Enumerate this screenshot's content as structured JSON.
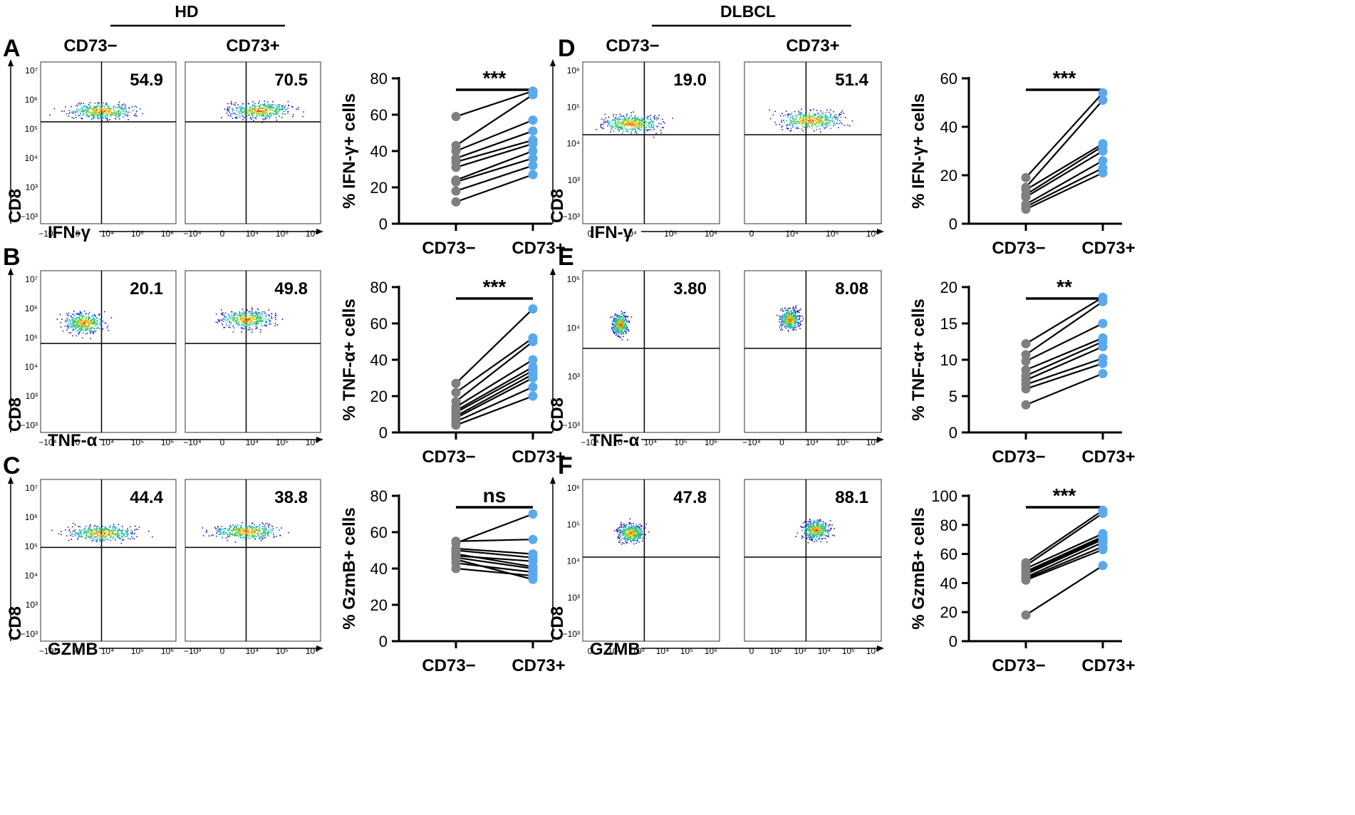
{
  "figure": {
    "groups": [
      {
        "label": "HD",
        "columns": [
          "CD73−",
          "CD73+"
        ]
      },
      {
        "label": "DLBCL",
        "columns": [
          "CD73−",
          "CD73+"
        ]
      }
    ],
    "panels": [
      {
        "letter": "A",
        "group": "HD",
        "y_axis": "CD8",
        "x_axis": "IFN-γ",
        "y_ticks": [
          "10⁷",
          "10⁶",
          "10⁵",
          "10⁴",
          "10³",
          "−10³"
        ],
        "x_ticks": [
          "−10⁴",
          "0",
          "10⁴",
          "10⁵",
          "10⁶"
        ],
        "quadrant_values": [
          "54.9",
          "70.5"
        ]
      },
      {
        "letter": "B",
        "group": "HD",
        "y_axis": "CD8",
        "x_axis": "TNF-α",
        "y_ticks": [
          "10⁷",
          "10⁶",
          "10⁵",
          "10⁴",
          "10³",
          "−10³"
        ],
        "x_ticks": [
          "−10⁴",
          "0",
          "10⁴",
          "10⁵",
          "10⁶"
        ],
        "quadrant_values": [
          "20.1",
          "49.8"
        ]
      },
      {
        "letter": "C",
        "group": "HD",
        "y_axis": "CD8",
        "x_axis": "GZMB",
        "y_ticks": [
          "10⁷",
          "10⁶",
          "10⁵",
          "10⁴",
          "10³",
          "−10³"
        ],
        "x_ticks": [
          "−10³",
          "0",
          "10⁴",
          "10⁵",
          "10⁶"
        ],
        "quadrant_values": [
          "44.4",
          "38.8"
        ]
      },
      {
        "letter": "D",
        "group": "DLBCL",
        "y_axis": "CD8",
        "x_axis": "IFN-γ",
        "y_ticks": [
          "10⁶",
          "10⁵",
          "10⁴",
          "10³",
          "−10³"
        ],
        "x_ticks": [
          "0",
          "10⁴",
          "10⁵",
          "10⁶"
        ],
        "quadrant_values": [
          "19.0",
          "51.4"
        ]
      },
      {
        "letter": "E",
        "group": "DLBCL",
        "y_axis": "CD8",
        "x_axis": "TNF-α",
        "y_ticks": [
          "10⁵",
          "10⁴",
          "10³",
          "−10³"
        ],
        "x_ticks": [
          "−10⁴",
          "0",
          "10⁴",
          "10⁵",
          "10⁶"
        ],
        "quadrant_values": [
          "3.80",
          "8.08"
        ]
      },
      {
        "letter": "F",
        "group": "DLBCL",
        "y_axis": "CD8",
        "x_axis": "GZMB",
        "y_ticks": [
          "10⁶",
          "10⁵",
          "10⁴",
          "10³",
          "−10³"
        ],
        "x_ticks": [
          "0",
          "10²",
          "10³",
          "10⁴",
          "10⁵",
          "10⁶"
        ],
        "quadrant_values": [
          "47.8",
          "88.1"
        ]
      }
    ]
  },
  "colors": {
    "neg_dot": "#7f7f7f",
    "pos_dot": "#5aa9ee",
    "line": "#000000",
    "flow_colors": [
      "#1a1aa6",
      "#2f55d4",
      "#1fb3b3",
      "#3cc84a",
      "#e8d61a",
      "#f07a1a",
      "#d92020"
    ]
  },
  "chart_data": [
    {
      "type": "scatter",
      "panel": "A",
      "title": "",
      "ylabel": "% IFN-γ+ cells",
      "categories": [
        "CD73−",
        "CD73+"
      ],
      "ylim": [
        0,
        80
      ],
      "yticks": [
        "0",
        "20",
        "40",
        "60",
        "80"
      ],
      "significance": "***",
      "pairs": [
        [
          59,
          73
        ],
        [
          43,
          71
        ],
        [
          40,
          57
        ],
        [
          36,
          51
        ],
        [
          34,
          46
        ],
        [
          31,
          44
        ],
        [
          24,
          40
        ],
        [
          23,
          36
        ],
        [
          18,
          32
        ],
        [
          12,
          27
        ]
      ]
    },
    {
      "type": "scatter",
      "panel": "B",
      "title": "",
      "ylabel": "% TNF-α+ cells",
      "categories": [
        "CD73−",
        "CD73+"
      ],
      "ylim": [
        0,
        80
      ],
      "yticks": [
        "0",
        "20",
        "40",
        "60",
        "80"
      ],
      "significance": "***",
      "pairs": [
        [
          27,
          68
        ],
        [
          22,
          52
        ],
        [
          17,
          50
        ],
        [
          14,
          40
        ],
        [
          12,
          36
        ],
        [
          11,
          34
        ],
        [
          9,
          32
        ],
        [
          8,
          30
        ],
        [
          6,
          25
        ],
        [
          4,
          20
        ]
      ]
    },
    {
      "type": "scatter",
      "panel": "C",
      "title": "",
      "ylabel": "% GzmB+ cells",
      "categories": [
        "CD73−",
        "CD73+"
      ],
      "ylim": [
        0,
        80
      ],
      "yticks": [
        "0",
        "20",
        "40",
        "60",
        "80"
      ],
      "significance": "ns",
      "pairs": [
        [
          55,
          56
        ],
        [
          54,
          70
        ],
        [
          51,
          48
        ],
        [
          50,
          46
        ],
        [
          48,
          41
        ],
        [
          47,
          44
        ],
        [
          46,
          40
        ],
        [
          45,
          34
        ],
        [
          43,
          38
        ],
        [
          40,
          36
        ]
      ]
    },
    {
      "type": "scatter",
      "panel": "D",
      "title": "",
      "ylabel": "% IFN-γ+ cells",
      "categories": [
        "CD73−",
        "CD73+"
      ],
      "ylim": [
        0,
        60
      ],
      "yticks": [
        "0",
        "20",
        "40",
        "60"
      ],
      "significance": "***",
      "pairs": [
        [
          19,
          54
        ],
        [
          15,
          51
        ],
        [
          14,
          33
        ],
        [
          12,
          32
        ],
        [
          11,
          30
        ],
        [
          8,
          26
        ],
        [
          7,
          23
        ],
        [
          6,
          21
        ]
      ]
    },
    {
      "type": "scatter",
      "panel": "E",
      "title": "",
      "ylabel": "% TNF-α+ cells",
      "categories": [
        "CD73−",
        "CD73+"
      ],
      "ylim": [
        0,
        20
      ],
      "yticks": [
        "0",
        "5",
        "10",
        "15",
        "20"
      ],
      "significance": "**",
      "pairs": [
        [
          12.2,
          18.6
        ],
        [
          10.7,
          18.0
        ],
        [
          9.8,
          15.0
        ],
        [
          8.6,
          13.0
        ],
        [
          7.8,
          12.5
        ],
        [
          7.2,
          11.8
        ],
        [
          6.6,
          10.2
        ],
        [
          6.0,
          9.5
        ],
        [
          3.8,
          8.1
        ]
      ]
    },
    {
      "type": "scatter",
      "panel": "F",
      "title": "",
      "ylabel": "% GzmB+ cells",
      "categories": [
        "CD73−",
        "CD73+"
      ],
      "ylim": [
        0,
        100
      ],
      "yticks": [
        "0",
        "20",
        "40",
        "60",
        "80",
        "100"
      ],
      "significance": "***",
      "pairs": [
        [
          54,
          90
        ],
        [
          52,
          88
        ],
        [
          50,
          74
        ],
        [
          48,
          72
        ],
        [
          47,
          71
        ],
        [
          46,
          70
        ],
        [
          44,
          68
        ],
        [
          43,
          65
        ],
        [
          42,
          63
        ],
        [
          18,
          52
        ]
      ]
    }
  ]
}
